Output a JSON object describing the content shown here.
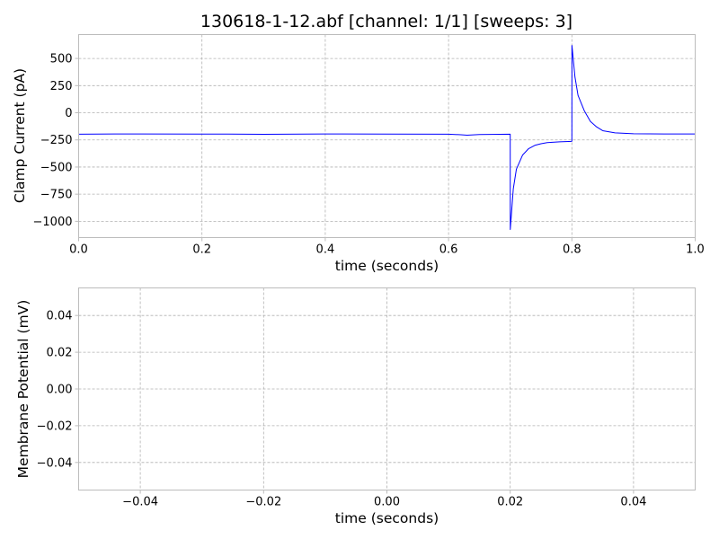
{
  "figure": {
    "title": "130618-1-12.abf [channel: 1/1] [sweeps: 3]"
  },
  "chart_data": [
    {
      "type": "line",
      "title": "130618-1-12.abf [channel: 1/1] [sweeps: 3]",
      "xlabel": "time (seconds)",
      "ylabel": "Clamp Current (pA)",
      "xlim": [
        0,
        1.0
      ],
      "ylim": [
        -1150,
        720
      ],
      "xticks": [
        0.0,
        0.2,
        0.4,
        0.6,
        0.8,
        1.0
      ],
      "xtick_labels": [
        "0.0",
        "0.2",
        "0.4",
        "0.6",
        "0.8",
        "1.0"
      ],
      "yticks": [
        500,
        250,
        0,
        -250,
        -500,
        -750,
        -1000
      ],
      "ytick_labels": [
        "500",
        "250",
        "0",
        "−250",
        "−500",
        "−750",
        "−1000"
      ],
      "grid": true,
      "line_color": "#0000ff",
      "series": [
        {
          "x": [
            0.0,
            0.1,
            0.2,
            0.3,
            0.4,
            0.5,
            0.6,
            0.62,
            0.63,
            0.65,
            0.7,
            0.7001,
            0.705,
            0.71,
            0.72,
            0.73,
            0.74,
            0.75,
            0.76,
            0.78,
            0.8,
            0.8001,
            0.805,
            0.81,
            0.82,
            0.83,
            0.84,
            0.85,
            0.87,
            0.9,
            0.95,
            1.0
          ],
          "y": [
            -197,
            -195,
            -196,
            -198,
            -195,
            -196,
            -197,
            -203,
            -207,
            -200,
            -197,
            -1075,
            -700,
            -520,
            -390,
            -330,
            -300,
            -285,
            -275,
            -268,
            -263,
            620,
            330,
            160,
            20,
            -80,
            -130,
            -165,
            -185,
            -193,
            -195,
            -195
          ]
        }
      ]
    },
    {
      "type": "line",
      "title": "",
      "xlabel": "time (seconds)",
      "ylabel": "Membrane Potential (mV)",
      "xlim": [
        -0.05,
        0.05
      ],
      "ylim": [
        -0.055,
        0.055
      ],
      "xticks": [
        -0.04,
        -0.02,
        0.0,
        0.02,
        0.04
      ],
      "xtick_labels": [
        "−0.04",
        "−0.02",
        "0.00",
        "0.02",
        "0.04"
      ],
      "yticks": [
        0.04,
        0.02,
        0.0,
        -0.02,
        -0.04
      ],
      "ytick_labels": [
        "0.04",
        "0.02",
        "0.00",
        "−0.02",
        "−0.04"
      ],
      "grid": true,
      "series": []
    }
  ]
}
